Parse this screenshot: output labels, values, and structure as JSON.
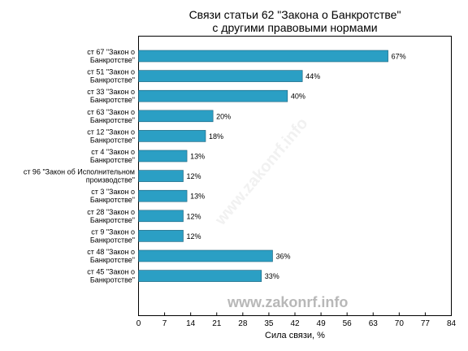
{
  "chart_data": {
    "type": "bar",
    "orientation": "horizontal",
    "title_line1": "Связи статьи 62 \"Закона о Банкротстве\"",
    "title_line2": "с другими правовыми нормами",
    "xlabel": "Сила связи, %",
    "ylabel": "",
    "xlim": [
      0,
      84
    ],
    "xticks": [
      "0",
      "7",
      "14",
      "21",
      "28",
      "35",
      "42",
      "49",
      "56",
      "63",
      "70",
      "77",
      "84"
    ],
    "grid": false,
    "bar_color": "#2b9fc4",
    "categories": [
      [
        "ст 67 \"Закон о",
        "Банкротстве\""
      ],
      [
        "ст 51 \"Закон о",
        "Банкротстве\""
      ],
      [
        "ст 33 \"Закон о",
        "Банкротстве\""
      ],
      [
        "ст 63 \"Закон о",
        "Банкротстве\""
      ],
      [
        "ст 12 \"Закон о",
        "Банкротстве\""
      ],
      [
        "ст 4 \"Закон о",
        "Банкротстве\""
      ],
      [
        "ст 96 \"Закон об Исполнительном",
        "производстве\""
      ],
      [
        "ст 3 \"Закон о",
        "Банкротстве\""
      ],
      [
        "ст 28 \"Закон о",
        "Банкротстве\""
      ],
      [
        "ст 9 \"Закон о",
        "Банкротстве\""
      ],
      [
        "ст 48 \"Закон о",
        "Банкротстве\""
      ],
      [
        "ст 45 \"Закон о",
        "Банкротстве\""
      ]
    ],
    "values": [
      67,
      44,
      40,
      20,
      18,
      13,
      12,
      13,
      12,
      12,
      36,
      33
    ],
    "value_labels": [
      "67%",
      "44%",
      "40%",
      "20%",
      "18%",
      "13%",
      "12%",
      "13%",
      "12%",
      "12%",
      "36%",
      "33%"
    ]
  },
  "watermark": "www.zakonrf.info",
  "diagonal_watermark": "www.zakonrf.info"
}
